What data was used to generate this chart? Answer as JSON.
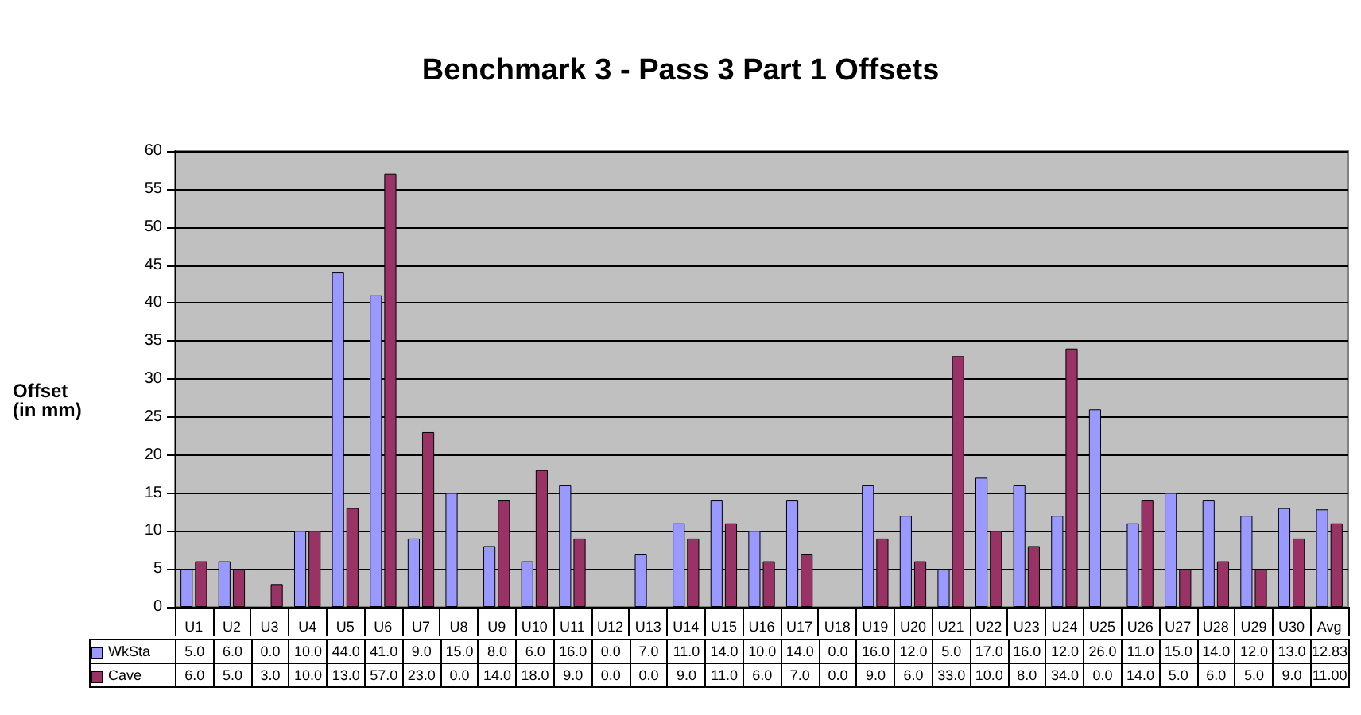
{
  "chart_data": {
    "type": "bar",
    "title": "Benchmark 3 - Pass 3 Part 1 Offsets",
    "ylabel": "Offset\n(in mm)",
    "categories": [
      "U1",
      "U2",
      "U3",
      "U4",
      "U5",
      "U6",
      "U7",
      "U8",
      "U9",
      "U10",
      "U11",
      "U12",
      "U13",
      "U14",
      "U15",
      "U16",
      "U17",
      "U18",
      "U19",
      "U20",
      "U21",
      "U22",
      "U23",
      "U24",
      "U25",
      "U26",
      "U27",
      "U28",
      "U29",
      "U30",
      "Avg"
    ],
    "series": [
      {
        "name": "WkSta",
        "color": "#9999ff",
        "values": [
          5,
          6,
          0,
          10,
          44,
          41,
          9,
          15,
          8,
          6,
          16,
          0,
          7,
          11,
          14,
          10,
          14,
          0,
          16,
          12,
          5,
          17,
          16,
          12,
          26,
          11,
          15,
          14,
          12,
          13,
          12.83
        ],
        "value_labels": [
          "5.0",
          "6.0",
          "0.0",
          "10.0",
          "44.0",
          "41.0",
          "9.0",
          "15.0",
          "8.0",
          "6.0",
          "16.0",
          "0.0",
          "7.0",
          "11.0",
          "14.0",
          "10.0",
          "14.0",
          "0.0",
          "16.0",
          "12.0",
          "5.0",
          "17.0",
          "16.0",
          "12.0",
          "26.0",
          "11.0",
          "15.0",
          "14.0",
          "12.0",
          "13.0",
          "12.83"
        ]
      },
      {
        "name": "Cave",
        "color": "#993366",
        "values": [
          6,
          5,
          3,
          10,
          13,
          57,
          23,
          0,
          14,
          18,
          9,
          0,
          0,
          9,
          11,
          6,
          7,
          0,
          9,
          6,
          33,
          10,
          8,
          34,
          0,
          14,
          5,
          6,
          5,
          9,
          11
        ],
        "value_labels": [
          "6.0",
          "5.0",
          "3.0",
          "10.0",
          "13.0",
          "57.0",
          "23.0",
          "0.0",
          "14.0",
          "18.0",
          "9.0",
          "0.0",
          "0.0",
          "9.0",
          "11.0",
          "6.0",
          "7.0",
          "0.0",
          "9.0",
          "6.0",
          "33.0",
          "10.0",
          "8.0",
          "34.0",
          "0.0",
          "14.0",
          "5.0",
          "6.0",
          "5.0",
          "9.0",
          "11.00"
        ]
      }
    ],
    "ylim": [
      0,
      60
    ],
    "yticks": [
      0,
      5,
      10,
      15,
      20,
      25,
      30,
      35,
      40,
      45,
      50,
      55,
      60
    ],
    "grid": "y",
    "legend": "bottom"
  }
}
